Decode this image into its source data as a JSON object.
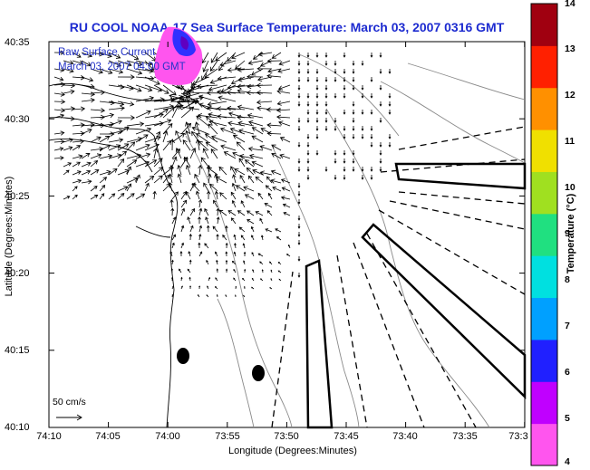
{
  "title": "RU COOL  NOAA-17  Sea Surface Temperature:  March 03, 2007 0316 GMT",
  "legend": {
    "line1": "Raw Surface Current",
    "line2": "March 03, 2007 04:00 GMT"
  },
  "y_axis": {
    "title": "Latitude (Degrees:Minutes)",
    "ticks": [
      "40:35",
      "40:30",
      "40:25",
      "40:20",
      "40:15",
      "40:10"
    ]
  },
  "x_axis": {
    "title": "Longitude (Degrees:Minutes)",
    "ticks": [
      "74:10",
      "74:05",
      "74:00",
      "73:55",
      "73:50",
      "73:45",
      "73:40",
      "73:35",
      "73:3"
    ]
  },
  "scale": {
    "label": "50 cm/s"
  },
  "colorbar": {
    "title": "Temperature (°C)",
    "ticks": [
      "14",
      "13",
      "12",
      "11",
      "10",
      "9",
      "8",
      "7",
      "6",
      "5",
      "4"
    ],
    "range": [
      4,
      14
    ],
    "colors": [
      "#ff55ee",
      "#c000ff",
      "#2020ff",
      "#00a0ff",
      "#00e0e0",
      "#20e080",
      "#a0e020",
      "#f0e000",
      "#ff9000",
      "#ff2000",
      "#a00010"
    ]
  }
}
